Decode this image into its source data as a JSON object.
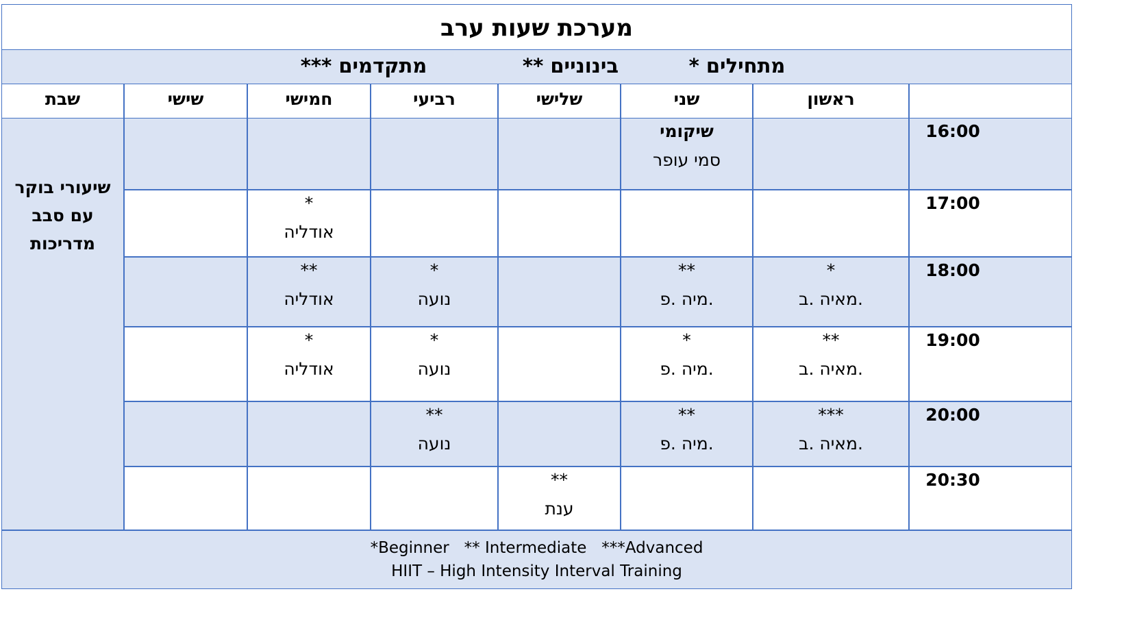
{
  "title": "מערכת שעות ערב",
  "legend": [
    "מתחילים *",
    "בינוניים **",
    "מתקדמים ***"
  ],
  "days": [
    "ראשון",
    "שני",
    "שלישי",
    "רביעי",
    "חמישי",
    "שישי",
    "שבת"
  ],
  "rows": [
    {
      "time": "16:00",
      "cells": [
        null,
        {
          "title": "שיקומי",
          "name": "סמי עופר"
        },
        null,
        null,
        null,
        null
      ]
    },
    {
      "time": "17:00",
      "cells": [
        null,
        null,
        null,
        null,
        {
          "level": "*",
          "name": "אודליה"
        },
        null
      ]
    },
    {
      "time": "18:00",
      "cells": [
        {
          "level": "*",
          "name": "מאיה .ב."
        },
        {
          "level": "**",
          "name": "מיה .פ."
        },
        null,
        {
          "level": "*",
          "name": "נועה"
        },
        {
          "level": "**",
          "name": "אודליה"
        },
        null
      ]
    },
    {
      "time": "19:00",
      "cells": [
        {
          "level": "**",
          "name": "מאיה .ב."
        },
        {
          "level": "*",
          "name": "מיה .פ."
        },
        null,
        {
          "level": "*",
          "name": "נועה"
        },
        {
          "level": "*",
          "name": "אודליה"
        },
        null
      ]
    },
    {
      "time": "20:00",
      "cells": [
        {
          "level": "***",
          "name": "מאיה .ב."
        },
        {
          "level": "**",
          "name": "מיה .פ."
        },
        null,
        {
          "level": "**",
          "name": "נועה"
        },
        null,
        null
      ]
    },
    {
      "time": "20:30",
      "cells": [
        null,
        null,
        {
          "level": "**",
          "name": "ענת"
        },
        null,
        null,
        null
      ]
    }
  ],
  "saturday_note": [
    "שיעורי בוקר",
    "עם סבב",
    "מדריכות"
  ],
  "footer": [
    "*Beginner   ** Intermediate   ***Advanced",
    "HIIT – High Intensity Interval Training"
  ]
}
